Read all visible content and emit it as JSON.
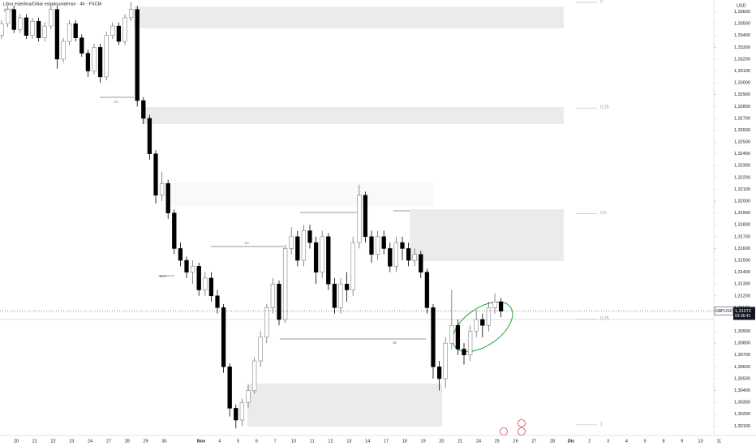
{
  "chart_data": {
    "type": "candlestick",
    "title": "Libra esterlina/Dólar estadounidense · 4h · FXCM",
    "subtitle": "4bV2",
    "currency": "USD",
    "up_color": "#ffffff",
    "down_color": "#000000",
    "x_axis_labels": [
      "20",
      "21",
      "22",
      "23",
      "24",
      "27",
      "28",
      "29",
      "30",
      null,
      "Nov",
      "4",
      "5",
      "6",
      "7",
      "10",
      "11",
      "12",
      "13",
      "14",
      "17",
      "18",
      "19",
      "20",
      "21",
      "24",
      "25",
      "26",
      "27",
      "28",
      "Dic",
      "2",
      "3",
      "4",
      "5",
      "8",
      "9",
      "10",
      "11"
    ],
    "open": [
      1.334,
      1.335,
      1.3362,
      1.3345,
      1.3355,
      1.334,
      1.3352,
      1.3338,
      1.3348,
      1.3362,
      1.332,
      1.3335,
      1.335,
      1.3338,
      1.3325,
      1.331,
      1.333,
      1.3305,
      1.334,
      1.3348,
      1.3335,
      1.3355,
      1.3362,
      1.3285,
      1.327,
      1.324,
      1.3205,
      1.3215,
      1.319,
      1.316,
      1.315,
      1.314,
      1.3145,
      1.3125,
      1.3135,
      1.312,
      1.311,
      1.306,
      1.3025,
      1.3015,
      1.303,
      1.304,
      1.3065,
      1.3085,
      1.311,
      1.313,
      1.31,
      1.316,
      1.317,
      1.315,
      1.3175,
      1.3165,
      1.314,
      1.317,
      1.313,
      1.311,
      1.313,
      1.3125,
      1.3165,
      1.3205,
      1.317,
      1.3155,
      1.317,
      1.316,
      1.3145,
      1.3165,
      1.316,
      1.315,
      1.3155,
      1.314,
      1.311,
      1.306,
      1.305,
      1.308,
      1.3095,
      1.3075,
      1.307,
      1.309,
      1.31,
      1.3095,
      1.311,
      1.3115
    ],
    "high": [
      1.3353,
      1.3365,
      1.3365,
      1.3358,
      1.3358,
      1.3355,
      1.3355,
      1.3351,
      1.3366,
      1.3365,
      1.3338,
      1.3353,
      1.3353,
      1.3341,
      1.3328,
      1.3333,
      1.3333,
      1.3343,
      1.3351,
      1.3351,
      1.3358,
      1.3368,
      1.3365,
      1.3288,
      1.3273,
      1.3243,
      1.3225,
      1.3218,
      1.3193,
      1.3165,
      1.3153,
      1.315,
      1.3148,
      1.314,
      1.314,
      1.3125,
      1.3113,
      1.3063,
      1.3028,
      1.3033,
      1.3045,
      1.3068,
      1.309,
      1.3113,
      1.3135,
      1.3133,
      1.3163,
      1.3178,
      1.3175,
      1.318,
      1.318,
      1.317,
      1.3175,
      1.3173,
      1.3135,
      1.3135,
      1.314,
      1.317,
      1.3214,
      1.3208,
      1.3175,
      1.3175,
      1.3175,
      1.3165,
      1.317,
      1.317,
      1.3165,
      1.316,
      1.3158,
      1.3143,
      1.3113,
      1.3065,
      1.3085,
      1.3125,
      1.31,
      1.308,
      1.3095,
      1.3108,
      1.3105,
      1.3115,
      1.3122,
      1.3118
    ],
    "low": [
      1.3337,
      1.3347,
      1.3342,
      1.3342,
      1.3337,
      1.3337,
      1.3335,
      1.3335,
      1.3345,
      1.3312,
      1.3317,
      1.3332,
      1.3335,
      1.3322,
      1.3305,
      1.3307,
      1.33,
      1.3302,
      1.3337,
      1.3332,
      1.3332,
      1.3352,
      1.328,
      1.3265,
      1.3235,
      1.3198,
      1.32,
      1.3185,
      1.3155,
      1.3145,
      1.3135,
      1.313,
      1.312,
      1.312,
      1.3115,
      1.3105,
      1.3055,
      1.3018,
      1.3008,
      1.301,
      1.3025,
      1.3037,
      1.306,
      1.308,
      1.3105,
      1.3095,
      1.3097,
      1.3155,
      1.3145,
      1.3145,
      1.316,
      1.313,
      1.3135,
      1.3125,
      1.3105,
      1.3105,
      1.3115,
      1.312,
      1.316,
      1.3165,
      1.3148,
      1.315,
      1.3155,
      1.314,
      1.314,
      1.315,
      1.3145,
      1.3145,
      1.3135,
      1.3105,
      1.305,
      1.304,
      1.3042,
      1.3075,
      1.307,
      1.3062,
      1.3065,
      1.3085,
      1.3085,
      1.309,
      1.3105,
      1.3102
    ],
    "close": [
      1.335,
      1.3362,
      1.3345,
      1.3355,
      1.334,
      1.3352,
      1.3338,
      1.3348,
      1.3362,
      1.332,
      1.3335,
      1.335,
      1.3338,
      1.3325,
      1.331,
      1.333,
      1.3305,
      1.334,
      1.3348,
      1.3335,
      1.3355,
      1.3362,
      1.3285,
      1.327,
      1.324,
      1.3205,
      1.3215,
      1.319,
      1.316,
      1.315,
      1.314,
      1.3145,
      1.3125,
      1.3135,
      1.312,
      1.311,
      1.306,
      1.3025,
      1.3015,
      1.303,
      1.304,
      1.3065,
      1.3085,
      1.311,
      1.313,
      1.31,
      1.316,
      1.317,
      1.315,
      1.3175,
      1.3165,
      1.314,
      1.317,
      1.313,
      1.311,
      1.313,
      1.3125,
      1.3165,
      1.3205,
      1.317,
      1.3155,
      1.317,
      1.316,
      1.3145,
      1.3165,
      1.316,
      1.315,
      1.3155,
      1.314,
      1.311,
      1.306,
      1.305,
      1.308,
      1.3095,
      1.3075,
      1.307,
      1.309,
      1.31,
      1.3095,
      1.311,
      1.3115,
      1.3107
    ],
    "ylim": [
      1.3002,
      1.337
    ],
    "yticks": [
      {
        "value": 1.336,
        "label": "1,33600"
      },
      {
        "value": 1.335,
        "label": "1,33500"
      },
      {
        "value": 1.334,
        "label": "1,33400"
      },
      {
        "value": 1.333,
        "label": "1,33300"
      },
      {
        "value": 1.332,
        "label": "1,33200"
      },
      {
        "value": 1.331,
        "label": "1,33100"
      },
      {
        "value": 1.33,
        "label": "1,33000"
      },
      {
        "value": 1.329,
        "label": "1,32900"
      },
      {
        "value": 1.328,
        "label": "1,32800"
      },
      {
        "value": 1.327,
        "label": "1,32700"
      },
      {
        "value": 1.326,
        "label": "1,32600"
      },
      {
        "value": 1.325,
        "label": "1,32500"
      },
      {
        "value": 1.324,
        "label": "1,32400"
      },
      {
        "value": 1.323,
        "label": "1,32300"
      },
      {
        "value": 1.322,
        "label": "1,32200"
      },
      {
        "value": 1.321,
        "label": "1,32100"
      },
      {
        "value": 1.32,
        "label": "1,32000"
      },
      {
        "value": 1.319,
        "label": "1,31900"
      },
      {
        "value": 1.318,
        "label": "1,31800"
      },
      {
        "value": 1.317,
        "label": "1,31700"
      },
      {
        "value": 1.316,
        "label": "1,31600"
      },
      {
        "value": 1.315,
        "label": "1,31500"
      },
      {
        "value": 1.314,
        "label": "1,31400"
      },
      {
        "value": 1.313,
        "label": "1,31300"
      },
      {
        "value": 1.312,
        "label": "1,31200"
      },
      {
        "value": 1.311,
        "label": "1,31100"
      },
      {
        "value": 1.309,
        "label": "1,30900"
      },
      {
        "value": 1.308,
        "label": "1,30800"
      },
      {
        "value": 1.307,
        "label": "1,30700"
      },
      {
        "value": 1.306,
        "label": "1,30600"
      },
      {
        "value": 1.305,
        "label": "1,30500"
      },
      {
        "value": 1.304,
        "label": "1,30400"
      },
      {
        "value": 1.303,
        "label": "1,30300"
      },
      {
        "value": 1.302,
        "label": "1,30200"
      },
      {
        "value": 1.301,
        "label": "1,30100"
      }
    ],
    "last_price": {
      "symbol": "GBPUSD",
      "price": {
        "value": 1.31072,
        "label": "1,31072"
      },
      "countdown": "03:36:41"
    },
    "fib_start": 1.3368,
    "fib_end": 1.3011,
    "fib_levels": [
      0,
      {
        "value": 0.25,
        "label": "0,25"
      },
      {
        "value": 0.5,
        "label": "0,5"
      },
      {
        "value": 0.75,
        "label": "0,75"
      },
      1
    ],
    "annotations": [
      "FC",
      "Ch",
      "BOS",
      "BF"
    ]
  }
}
